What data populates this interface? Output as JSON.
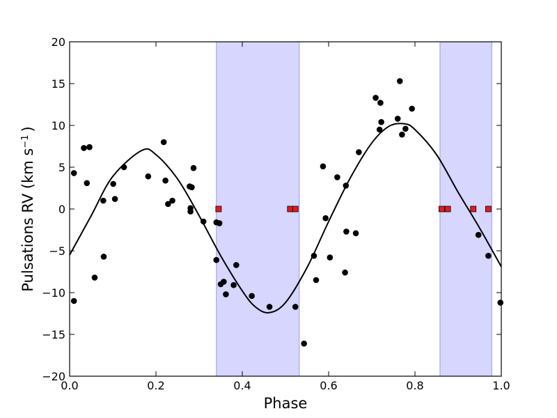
{
  "chart_data": {
    "type": "scatter",
    "xlabel": "Phase",
    "ylabel_main": "Pulsations RV (km s",
    "ylabel_sup": "−1",
    "ylabel_close": ")",
    "xlim": [
      0,
      1
    ],
    "ylim": [
      -20,
      20
    ],
    "x_ticks": [
      {
        "value": 0,
        "label": "0.0"
      },
      {
        "value": 0.2,
        "label": "0.2"
      },
      {
        "value": 0.4,
        "label": "0.4"
      },
      {
        "value": 0.6,
        "label": "0.6"
      },
      {
        "value": 0.8,
        "label": "0.8"
      },
      {
        "value": 1.0,
        "label": "1.0"
      }
    ],
    "y_ticks": [
      {
        "value": 20,
        "label": "20"
      },
      {
        "value": 15,
        "label": "15"
      },
      {
        "value": 10,
        "label": "10"
      },
      {
        "value": 5,
        "label": "5"
      },
      {
        "value": 0,
        "label": "0"
      },
      {
        "value": -5,
        "label": "−5"
      },
      {
        "value": -10,
        "label": "−10"
      },
      {
        "value": -15,
        "label": "−15"
      },
      {
        "value": -20,
        "label": "−20"
      }
    ],
    "grid": false,
    "shaded_bands": [
      {
        "x0": 0.34,
        "x1": 0.532
      },
      {
        "x0": 0.858,
        "x1": 0.978
      }
    ],
    "band_color": "#d6d6ff",
    "band_edge_color": "#9a9ae8",
    "model_curve": {
      "color": "#000000",
      "x": [
        0.0,
        0.05,
        0.1,
        0.167,
        0.2,
        0.25,
        0.3,
        0.35,
        0.4,
        0.43,
        0.462,
        0.5,
        0.55,
        0.6,
        0.65,
        0.7,
        0.74,
        0.775,
        0.8,
        0.85,
        0.9,
        0.95,
        1.0
      ],
      "y": [
        -5.5,
        -0.8,
        3.9,
        7.0,
        6.5,
        3.6,
        -0.8,
        -5.6,
        -9.8,
        -11.7,
        -12.4,
        -11.2,
        -7.0,
        -1.5,
        3.7,
        7.9,
        9.9,
        10.2,
        9.5,
        6.5,
        2.0,
        -2.3,
        -6.9
      ]
    },
    "series": [
      {
        "marker": "circle",
        "color": "#000000",
        "points": [
          [
            0.01,
            4.3
          ],
          [
            0.01,
            -11.0
          ],
          [
            0.033,
            7.3
          ],
          [
            0.04,
            3.1
          ],
          [
            0.046,
            7.4
          ],
          [
            0.058,
            -8.2
          ],
          [
            0.078,
            1.0
          ],
          [
            0.079,
            -5.7
          ],
          [
            0.101,
            3.0
          ],
          [
            0.105,
            1.2
          ],
          [
            0.126,
            5.0
          ],
          [
            0.182,
            3.9
          ],
          [
            0.218,
            8.0
          ],
          [
            0.222,
            3.4
          ],
          [
            0.228,
            0.6
          ],
          [
            0.238,
            1.0
          ],
          [
            0.278,
            2.7
          ],
          [
            0.28,
            0.1
          ],
          [
            0.28,
            -0.3
          ],
          [
            0.283,
            2.6
          ],
          [
            0.287,
            4.9
          ],
          [
            0.31,
            -1.5
          ],
          [
            0.34,
            -1.6
          ],
          [
            0.34,
            -6.1
          ],
          [
            0.347,
            -1.7
          ],
          [
            0.35,
            -9.0
          ],
          [
            0.357,
            -8.7
          ],
          [
            0.362,
            -10.2
          ],
          [
            0.38,
            -9.1
          ],
          [
            0.386,
            -6.7
          ],
          [
            0.422,
            -10.4
          ],
          [
            0.463,
            -11.7
          ],
          [
            0.523,
            -11.7
          ],
          [
            0.543,
            -16.1
          ],
          [
            0.566,
            -5.6
          ],
          [
            0.571,
            -8.5
          ],
          [
            0.587,
            5.1
          ],
          [
            0.593,
            -1.1
          ],
          [
            0.603,
            -5.8
          ],
          [
            0.62,
            3.8
          ],
          [
            0.638,
            -7.6
          ],
          [
            0.64,
            2.8
          ],
          [
            0.641,
            -2.7
          ],
          [
            0.663,
            -2.9
          ],
          [
            0.67,
            6.8
          ],
          [
            0.709,
            13.3
          ],
          [
            0.718,
            9.5
          ],
          [
            0.72,
            12.7
          ],
          [
            0.722,
            10.4
          ],
          [
            0.76,
            10.8
          ],
          [
            0.765,
            15.3
          ],
          [
            0.77,
            8.9
          ],
          [
            0.778,
            9.6
          ],
          [
            0.793,
            12.0
          ],
          [
            0.947,
            -3.1
          ],
          [
            0.97,
            -5.6
          ],
          [
            0.998,
            -11.2
          ]
        ]
      },
      {
        "marker": "square",
        "color": "#e41a1c",
        "points": [
          [
            0.345,
            0
          ],
          [
            0.511,
            0
          ],
          [
            0.523,
            0
          ],
          [
            0.862,
            0
          ],
          [
            0.876,
            0
          ],
          [
            0.935,
            0
          ],
          [
            0.97,
            0
          ]
        ]
      }
    ]
  }
}
